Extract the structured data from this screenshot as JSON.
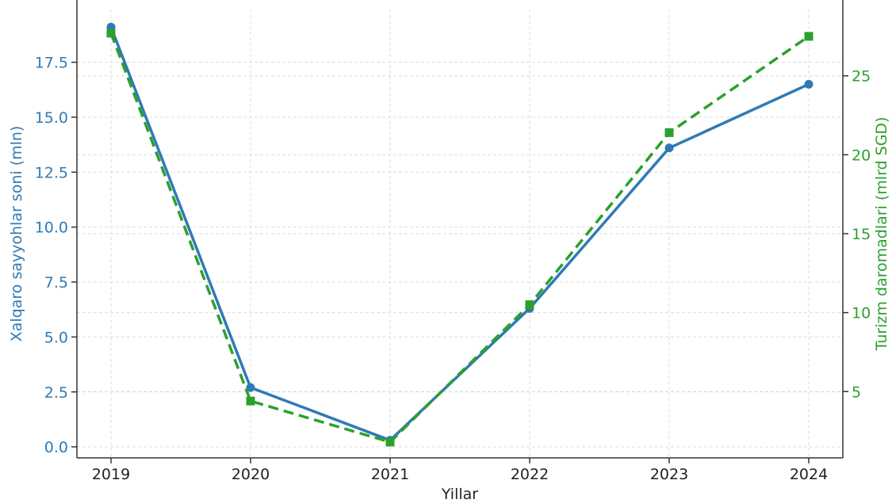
{
  "chart_data": {
    "type": "line",
    "title": "",
    "xlabel": "Yillar",
    "ylabel_left": "Xalqaro sayyohlar soni (mln)",
    "ylabel_right": "Turizm daromadlari (mlrd SGD)",
    "categories": [
      "2019",
      "2020",
      "2021",
      "2022",
      "2023",
      "2024"
    ],
    "x_ticks": [
      "2019",
      "2020",
      "2021",
      "2022",
      "2023",
      "2024"
    ],
    "y_left_ticks": [
      "0.0",
      "2.5",
      "5.0",
      "7.5",
      "10.0",
      "12.5",
      "15.0",
      "17.5"
    ],
    "y_right_ticks": [
      "5",
      "10",
      "15",
      "20",
      "25"
    ],
    "y_left_ticks_values": [
      0,
      2.5,
      5,
      7.5,
      10,
      12.5,
      15,
      17.5
    ],
    "y_right_ticks_values": [
      5,
      10,
      15,
      20,
      25
    ],
    "y_left_lim": [
      -0.5,
      19.9
    ],
    "y_right_lim": [
      0.8,
      29.2
    ],
    "grid": true,
    "series": [
      {
        "axis": "left",
        "style": "solid",
        "marker": "circle",
        "color": "#2f7ab5",
        "values": [
          19.1,
          2.7,
          0.3,
          6.3,
          13.6,
          16.5
        ]
      },
      {
        "axis": "right",
        "style": "dashed",
        "marker": "square",
        "color": "#2ca02c",
        "values": [
          27.7,
          4.4,
          1.8,
          10.5,
          21.4,
          27.5
        ]
      }
    ],
    "colors": {
      "left_axis": "#2f7ab5",
      "right_axis": "#2ca02c",
      "axis_line": "#333333",
      "grid": "#dddddd"
    }
  }
}
